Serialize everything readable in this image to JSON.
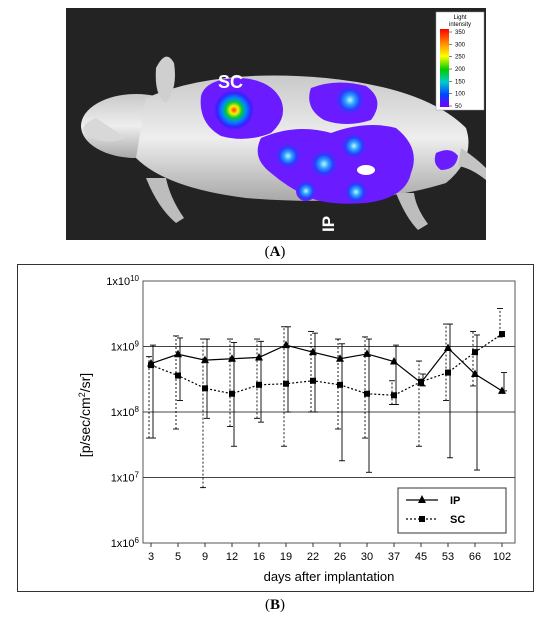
{
  "panel_a": {
    "label_text": "(A)",
    "label_letter": "A",
    "sc_label": "SC",
    "ip_label": "IP",
    "colorbar": {
      "title_line1": "Light",
      "title_line2": "intensity",
      "ticks": [
        "350",
        "300",
        "250",
        "200",
        "150",
        "100",
        "50"
      ],
      "colors": [
        "#ff0000",
        "#ff8800",
        "#ffff00",
        "#00cc00",
        "#00cccc",
        "#0044ff",
        "#7700ff"
      ]
    }
  },
  "panel_b": {
    "label_text": "(B)",
    "label_letter": "B"
  },
  "chart_data": {
    "type": "line",
    "scale": "log",
    "title": "",
    "xlabel": "days after implantation",
    "ylabel": "[p/sec/cm²/sr]",
    "ylim": [
      1000000,
      10000000000
    ],
    "grid": "horizontal lines at 10^7, 10^8, 10^9",
    "legend_position": "bottom-right",
    "y_ticks": [
      {
        "value": 1000000,
        "base": "1x10",
        "exp": "6"
      },
      {
        "value": 10000000,
        "base": "1x10",
        "exp": "7"
      },
      {
        "value": 100000000,
        "base": "1x10",
        "exp": "8"
      },
      {
        "value": 1000000000,
        "base": "1x10",
        "exp": "9"
      },
      {
        "value": 10000000000,
        "base": "1x10",
        "exp": "10"
      }
    ],
    "categories": [
      "3",
      "5",
      "9",
      "12",
      "16",
      "19",
      "22",
      "26",
      "30",
      "37",
      "45",
      "53",
      "66",
      "102"
    ],
    "series": [
      {
        "name": "IP",
        "marker": "triangle",
        "line_style": "solid",
        "values": [
          550000000,
          760000000,
          620000000,
          650000000,
          680000000,
          1050000000,
          820000000,
          650000000,
          770000000,
          590000000,
          280000000,
          950000000,
          380000000,
          210000000
        ],
        "error_low": [
          40000000,
          150000000,
          80000000,
          30000000,
          70000000,
          100000000,
          100000000,
          18000000,
          12000000,
          130000000,
          250000000,
          20000000,
          13000000,
          210000000
        ],
        "error_high": [
          1050000000,
          1350000000,
          1300000000,
          1150000000,
          1200000000,
          2000000000,
          1600000000,
          1100000000,
          1300000000,
          1050000000,
          380000000,
          2200000000,
          1500000000,
          400000000
        ]
      },
      {
        "name": "SC",
        "marker": "square",
        "line_style": "dotted",
        "values": [
          520000000,
          360000000,
          230000000,
          190000000,
          260000000,
          270000000,
          300000000,
          260000000,
          190000000,
          180000000,
          290000000,
          400000000,
          820000000,
          1550000000
        ],
        "error_low": [
          40000000,
          55000000,
          7000000,
          60000000,
          80000000,
          30000000,
          100000000,
          55000000,
          40000000,
          130000000,
          30000000,
          150000000,
          250000000,
          1400000000
        ],
        "error_high": [
          700000000,
          1450000000,
          1300000000,
          1300000000,
          1300000000,
          2000000000,
          1700000000,
          1300000000,
          1400000000,
          300000000,
          600000000,
          2200000000,
          1700000000,
          3800000000
        ]
      }
    ]
  }
}
